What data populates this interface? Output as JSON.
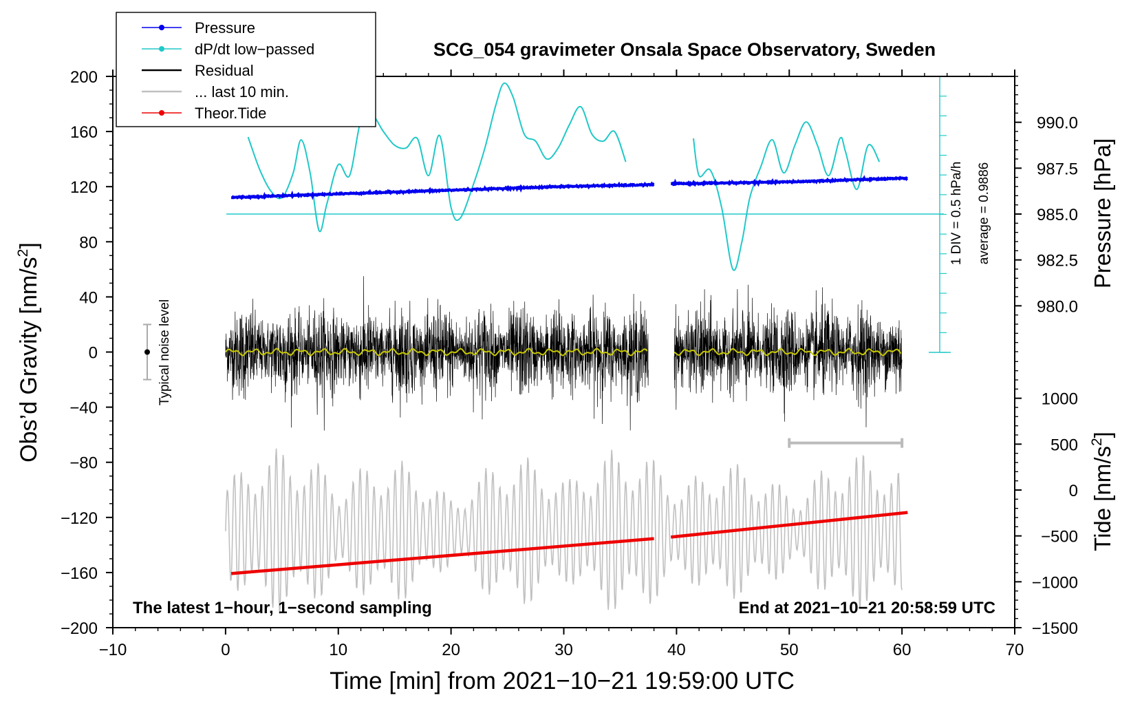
{
  "chart_data": {
    "type": "line",
    "title": "SCG_054 gravimeter Onsala Space Observatory, Sweden",
    "xlabel": "Time [min] from 2021−10−21 19:59:00 UTC",
    "ylabel_left_main": "Obs’d Gravity [nm/s",
    "ylabel_left_sup": "2",
    "ylabel_left_end": "]",
    "ylabel_right_pressure": "Pressure [hPa]",
    "ylabel_right_tide_main": "Tide [nm/s",
    "ylabel_right_tide_sup": "2",
    "ylabel_right_tide_end": "]",
    "xlim": [
      -10,
      70
    ],
    "ylim": [
      -200,
      200
    ],
    "x_ticks": [
      {
        "v": -10,
        "label": "−10"
      },
      {
        "v": 0,
        "label": "0"
      },
      {
        "v": 10,
        "label": "10"
      },
      {
        "v": 20,
        "label": "20"
      },
      {
        "v": 30,
        "label": "30"
      },
      {
        "v": 40,
        "label": "40"
      },
      {
        "v": 50,
        "label": "50"
      },
      {
        "v": 60,
        "label": "60"
      },
      {
        "v": 70,
        "label": "70"
      }
    ],
    "y_ticks": [
      {
        "v": 200,
        "label": "200"
      },
      {
        "v": 160,
        "label": "160"
      },
      {
        "v": 120,
        "label": "120"
      },
      {
        "v": 80,
        "label": "80"
      },
      {
        "v": 40,
        "label": "40"
      },
      {
        "v": 0,
        "label": "0"
      },
      {
        "v": -40,
        "label": "−40"
      },
      {
        "v": -80,
        "label": "−80"
      },
      {
        "v": -120,
        "label": "−120"
      },
      {
        "v": -160,
        "label": "−160"
      },
      {
        "v": -200,
        "label": "−200"
      }
    ],
    "pressure_axis": {
      "ylim_hpa": [
        977.5,
        992.5
      ],
      "ticks": [
        {
          "v": 990.0,
          "label": "990.0"
        },
        {
          "v": 987.5,
          "label": "987.5"
        },
        {
          "v": 985.0,
          "label": "985.0"
        },
        {
          "v": 982.5,
          "label": "982.5"
        },
        {
          "v": 980.0,
          "label": "980.0"
        }
      ]
    },
    "tide_axis": {
      "ylim": [
        -1500,
        1500
      ],
      "ticks": [
        {
          "v": 1000,
          "label": "1000"
        },
        {
          "v": 500,
          "label": "500"
        },
        {
          "v": 0,
          "label": "0"
        },
        {
          "v": -500,
          "label": "−500"
        },
        {
          "v": -1000,
          "label": "−1000"
        },
        {
          "v": -1500,
          "label": "−1500"
        }
      ]
    },
    "legend": {
      "placement": "top-left",
      "entries": [
        {
          "label": "Pressure",
          "color": "#0000ee",
          "marker": true
        },
        {
          "label": "dP/dt low−passed",
          "color": "#20c8c8",
          "marker": true
        },
        {
          "label": "Residual",
          "color": "#000000",
          "marker": false
        },
        {
          "label": "... last 10 min.",
          "color": "#c0c0c0",
          "marker": false
        },
        {
          "label": "Theor.Tide",
          "color": "#ee0000",
          "marker": true
        }
      ]
    },
    "series": [
      {
        "name": "Pressure",
        "color": "#0000ee",
        "units": "hPa",
        "segments": [
          {
            "x": [
              0.5,
              10,
              20,
              30,
              38
            ],
            "y": [
              985.9,
              986.1,
              986.3,
              986.5,
              986.6
            ]
          },
          {
            "x": [
              39.5,
              45,
              50,
              55,
              60.5
            ],
            "y": [
              986.65,
              986.7,
              986.75,
              986.85,
              986.95
            ]
          }
        ]
      },
      {
        "name": "dP/dt low−passed",
        "color": "#20c8c8",
        "units": "gravity-axis plot units",
        "segments": [
          {
            "x": [
              2,
              3,
              4,
              5,
              6,
              6.7,
              7.5,
              8.3,
              9,
              10,
              11,
              12,
              13,
              14,
              15,
              16,
              17,
              18,
              19,
              20,
              20.8,
              22,
              23,
              24,
              24.7,
              25.5,
              26.5,
              27.5,
              28.5,
              29.5,
              30.5,
              31.5,
              32.5,
              33.5,
              34.5,
              35.5
            ],
            "y": [
              156,
              133,
              117,
              112,
              130,
              154,
              130,
              88,
              108,
              136,
              128,
              168,
              172,
              160,
              150,
              148,
              155,
              128,
              157,
              105,
              97,
              122,
              148,
              180,
              195,
              185,
              158,
              153,
              140,
              148,
              165,
              178,
              158,
              153,
              160,
              138
            ]
          },
          {
            "x": [
              41.5,
              42,
              43,
              44,
              45,
              45.8,
              46.5,
              47.5,
              48.5,
              49.5,
              50.5,
              51.5,
              52.5,
              53.5,
              54.5,
              55,
              56,
              57,
              58
            ],
            "y": [
              155,
              128,
              132,
              105,
              60,
              80,
              112,
              135,
              154,
              130,
              150,
              167,
              150,
              128,
              155,
              145,
              118,
              150,
              138
            ]
          }
        ]
      },
      {
        "name": "Residual",
        "color": "#000000",
        "units": "nm/s²",
        "segments": [
          {
            "x_range": [
              0,
              37.5
            ],
            "noise_amplitude": 40
          },
          {
            "x_range": [
              39.8,
              60
            ],
            "noise_amplitude": 40
          }
        ]
      },
      {
        "name": "Residual smoothed",
        "color": "#c8c800",
        "units": "nm/s²",
        "segments": [
          {
            "x_range": [
              0,
              37.5
            ],
            "y": 0
          },
          {
            "x_range": [
              39.8,
              60
            ],
            "y": 0
          }
        ]
      },
      {
        "name": "... last 10 min.",
        "color": "#c0c0c0",
        "units": "nm/s² (offset)",
        "segments": [
          {
            "x_range": [
              0,
              60
            ],
            "center": -130,
            "amplitude": 45
          }
        ]
      },
      {
        "name": "Theor.Tide",
        "color": "#ee0000",
        "units": "nm/s²",
        "segments": [
          {
            "x": [
              0.5,
              38
            ],
            "y": [
              -910,
              -530
            ]
          },
          {
            "x": [
              39.5,
              60.5
            ],
            "y": [
              -513,
              -245
            ]
          }
        ]
      }
    ],
    "annotations": {
      "zero_line_label": "",
      "div_label": "1 DIV = 0.5 hPa/h",
      "average_label": "average = 0.9886",
      "noise_label": "Typical noise level",
      "bottom_left": "The latest 1−hour, 1−second sampling",
      "bottom_right": "End at 2021−10−21 20:58:59 UTC",
      "last10_range": [
        50,
        60
      ]
    }
  }
}
